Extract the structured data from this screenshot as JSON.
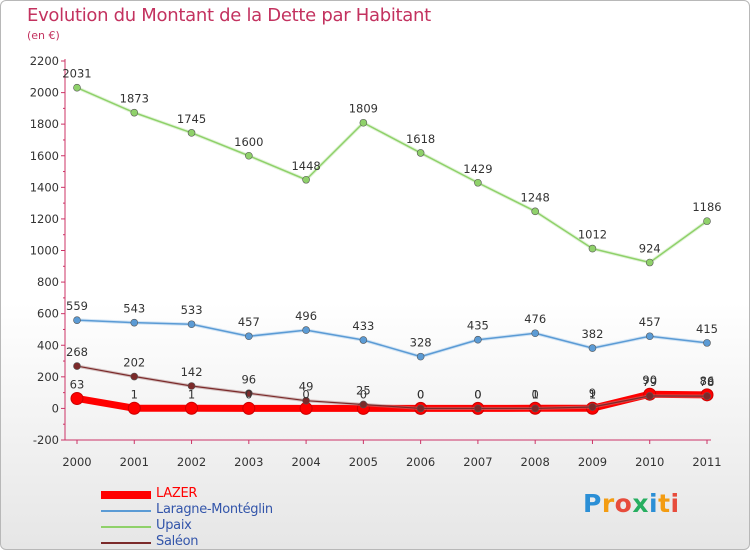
{
  "chart_data": {
    "type": "line",
    "title": "Evolution du Montant de la Dette par Habitant",
    "subtitle": "(en €)",
    "x": [
      "2000",
      "2001",
      "2002",
      "2003",
      "2004",
      "2005",
      "2006",
      "2007",
      "2008",
      "2009",
      "2010",
      "2011"
    ],
    "ylim": [
      -200,
      2200
    ],
    "yticks": [
      -200,
      0,
      200,
      400,
      600,
      800,
      1000,
      1200,
      1400,
      1600,
      1800,
      2000,
      2200
    ],
    "grid": false,
    "legend_position": "bottom-left",
    "series": [
      {
        "name": "LAZER",
        "color": "#ff0000",
        "values": [
          63,
          1,
          1,
          0,
          0,
          0,
          0,
          0,
          1,
          1,
          90,
          86
        ],
        "labels": [
          "63",
          "1",
          "1",
          "0",
          "0",
          "0",
          "0",
          "0",
          "1",
          "1",
          "90",
          "86"
        ]
      },
      {
        "name": "Laragne-Montéglin",
        "color": "#5b9bd5",
        "values": [
          559,
          543,
          533,
          457,
          496,
          433,
          328,
          435,
          476,
          382,
          457,
          415
        ],
        "labels": [
          "559",
          "543",
          "533",
          "457",
          "496",
          "433",
          "328",
          "435",
          "476",
          "382",
          "457",
          "415"
        ]
      },
      {
        "name": "Upaix",
        "color": "#8fd16a",
        "values": [
          2031,
          1873,
          1745,
          1600,
          1448,
          1809,
          1618,
          1429,
          1248,
          1012,
          924,
          1186
        ],
        "labels": [
          "2031",
          "1873",
          "1745",
          "1600",
          "1448",
          "1809",
          "1618",
          "1429",
          "1248",
          "1012",
          "924",
          "1186"
        ]
      },
      {
        "name": "Saléon",
        "color": "#7b2a2a",
        "values": [
          268,
          202,
          142,
          96,
          49,
          25,
          0,
          0,
          0,
          9,
          79,
          78
        ],
        "labels": [
          "268",
          "202",
          "142",
          "96",
          "49",
          "25",
          "0",
          "0",
          "0",
          "9",
          "79",
          "78"
        ]
      }
    ]
  },
  "logo": {
    "letters": [
      {
        "ch": "P",
        "color": "#2b8fd6"
      },
      {
        "ch": "r",
        "color": "#f39c12"
      },
      {
        "ch": "o",
        "color": "#e74c3c"
      },
      {
        "ch": "x",
        "color": "#27ae60"
      },
      {
        "ch": "i",
        "color": "#2b8fd6"
      },
      {
        "ch": "t",
        "color": "#f39c12"
      },
      {
        "ch": "i",
        "color": "#e74c3c"
      }
    ]
  }
}
